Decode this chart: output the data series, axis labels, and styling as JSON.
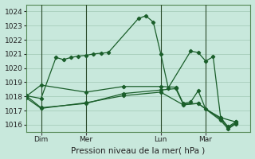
{
  "background_color": "#c8e8dc",
  "plot_bg_color": "#c8e8dc",
  "grid_color": "#a0c8b4",
  "line_color": "#1a5e2a",
  "ylim": [
    1015.5,
    1024.5
  ],
  "yticks": [
    1016,
    1017,
    1018,
    1019,
    1020,
    1021,
    1022,
    1023,
    1024
  ],
  "xlabel": "Pression niveau de la mer( hPa )",
  "xtick_labels": [
    "Dim",
    "Mer",
    "Lun",
    "Mar"
  ],
  "xtick_positions": [
    2,
    8,
    18,
    24
  ],
  "vline_positions": [
    2,
    8,
    18,
    24
  ],
  "xlim": [
    0,
    30
  ],
  "line1": {
    "x": [
      0,
      2,
      4,
      5,
      6,
      7,
      8,
      9,
      10,
      11,
      15,
      16,
      17,
      18,
      19,
      22,
      23,
      24,
      25,
      26,
      28
    ],
    "y": [
      1018.05,
      1017.85,
      1020.75,
      1020.6,
      1020.75,
      1020.85,
      1020.9,
      1021.0,
      1021.05,
      1021.1,
      1023.5,
      1023.7,
      1023.25,
      1021.0,
      1018.6,
      1021.2,
      1021.1,
      1020.5,
      1020.8,
      1016.5,
      1016.2
    ]
  },
  "line2": {
    "x": [
      0,
      2,
      8,
      13,
      18,
      20,
      21,
      22,
      23,
      24,
      26,
      27,
      28
    ],
    "y": [
      1018.0,
      1018.8,
      1018.3,
      1018.7,
      1018.7,
      1018.65,
      1017.5,
      1017.6,
      1018.4,
      1017.1,
      1016.5,
      1015.85,
      1016.2
    ]
  },
  "line3": {
    "x": [
      0,
      2,
      8,
      13,
      18,
      20,
      21,
      23,
      26,
      27,
      28
    ],
    "y": [
      1018.05,
      1017.2,
      1017.5,
      1018.2,
      1018.45,
      1018.55,
      1017.45,
      1017.5,
      1016.4,
      1015.8,
      1016.1
    ]
  },
  "line4": {
    "x": [
      0,
      2,
      8,
      13,
      18,
      21,
      23,
      26,
      27,
      28
    ],
    "y": [
      1017.9,
      1017.15,
      1017.55,
      1018.05,
      1018.3,
      1017.4,
      1017.5,
      1016.3,
      1015.7,
      1016.05
    ]
  },
  "marker": "D",
  "marker_size": 2.2,
  "line_width": 0.9
}
